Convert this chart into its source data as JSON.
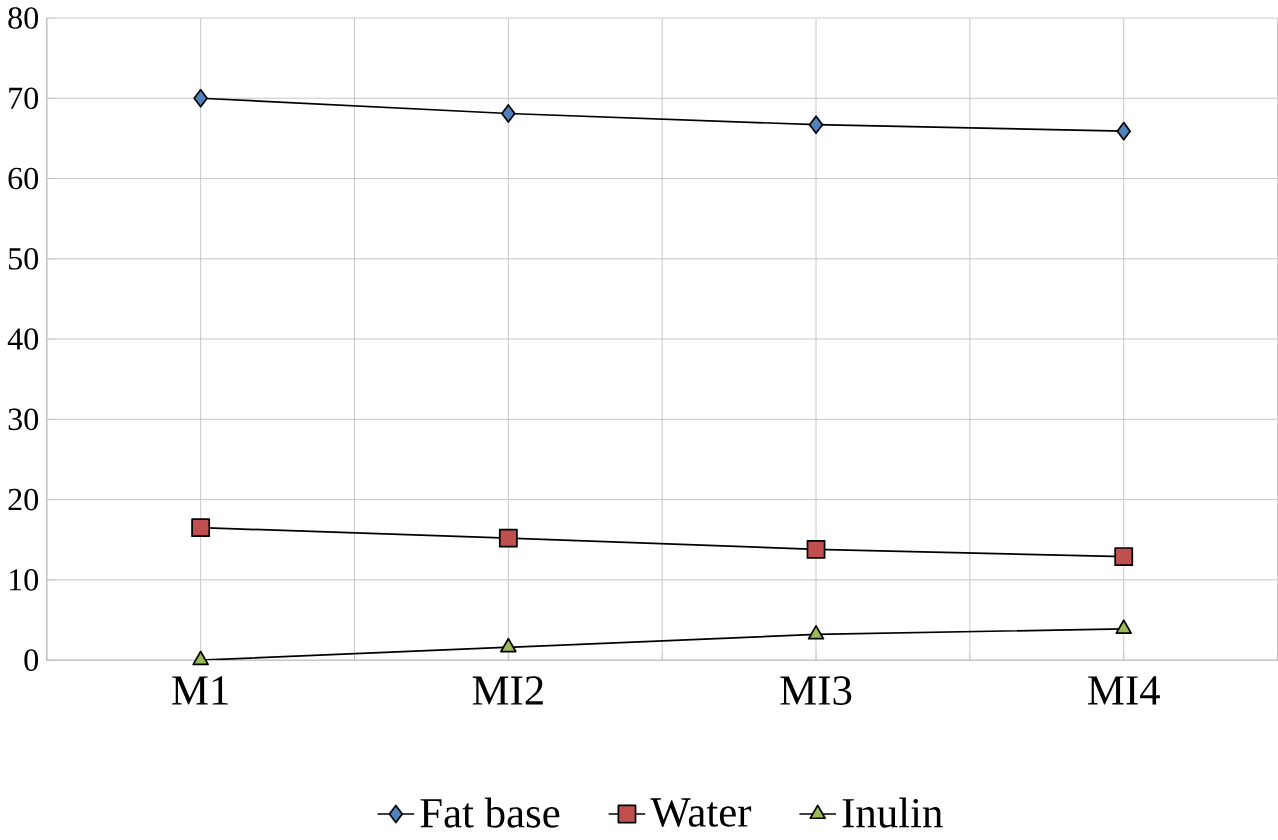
{
  "chart_data": {
    "type": "line",
    "categories": [
      "M1",
      "MI2",
      "MI3",
      "MI4"
    ],
    "series": [
      {
        "name": "Fat base",
        "color": "#4f81bd",
        "marker": "diamond",
        "values": [
          70.0,
          68.1,
          66.7,
          65.9
        ]
      },
      {
        "name": "Water",
        "color": "#c0504d",
        "marker": "square",
        "values": [
          16.5,
          15.2,
          13.8,
          12.9
        ]
      },
      {
        "name": "Inulin",
        "color": "#9bbb59",
        "marker": "triangle",
        "values": [
          0,
          1.6,
          3.2,
          3.9
        ]
      }
    ],
    "ylim": [
      0,
      80
    ],
    "yticks": [
      0,
      10,
      20,
      30,
      40,
      50,
      60,
      70,
      80
    ],
    "grid": true,
    "legend": "bottom"
  }
}
